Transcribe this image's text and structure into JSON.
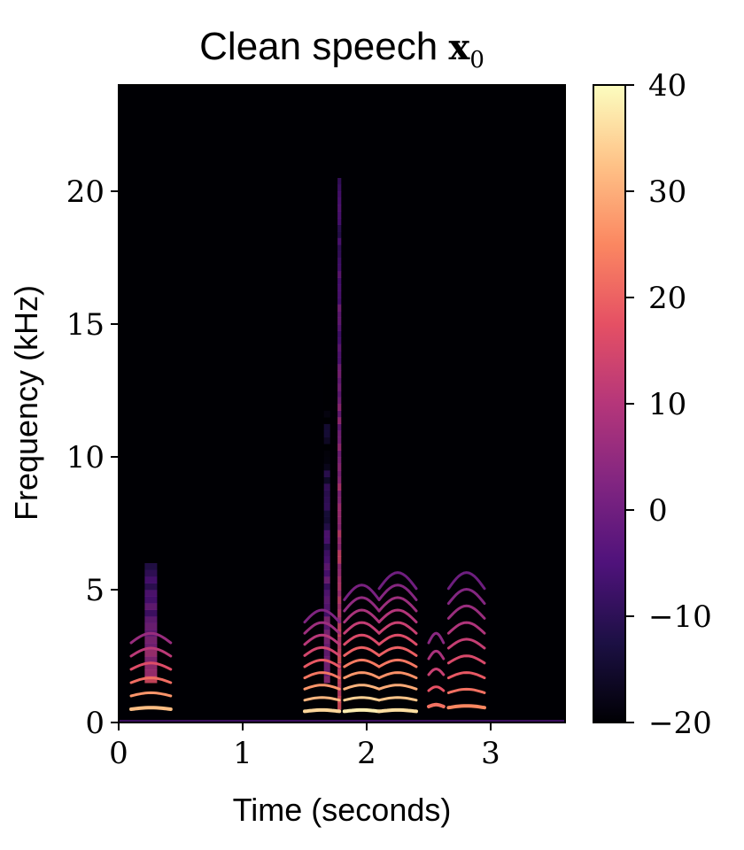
{
  "chart_data": {
    "type": "heatmap",
    "title": "Clean speech",
    "title_symbol": "x",
    "title_subscript": "0",
    "xlabel": "Time (seconds)",
    "ylabel": "Frequency (kHz)",
    "xlim": [
      0,
      3.6
    ],
    "ylim": [
      0,
      24
    ],
    "x_ticks": [
      0,
      1,
      2,
      3
    ],
    "x_tick_labels": [
      "0",
      "1",
      "2",
      "3"
    ],
    "y_ticks": [
      0,
      5,
      10,
      15,
      20
    ],
    "y_tick_labels": [
      "0",
      "5",
      "10",
      "15",
      "20"
    ],
    "colormap": "magma",
    "colorbar": {
      "min": -20,
      "max": 40,
      "ticks": [
        -20,
        -10,
        0,
        10,
        20,
        30,
        40
      ],
      "tick_labels": [
        "−20",
        "−10",
        "0",
        "10",
        "20",
        "30",
        "40"
      ]
    },
    "background_level_db": -20,
    "harmonic_segments": [
      {
        "t_start": 0.1,
        "t_end": 0.42,
        "f0_khz": 0.25,
        "n_harmonics": 6,
        "peak_db": 32
      },
      {
        "t_start": 1.5,
        "t_end": 1.78,
        "f0_khz": 0.21,
        "n_harmonics": 9,
        "peak_db": 35
      },
      {
        "t_start": 1.82,
        "t_end": 2.1,
        "f0_khz": 0.21,
        "n_harmonics": 11,
        "peak_db": 38
      },
      {
        "t_start": 2.1,
        "t_end": 2.4,
        "f0_khz": 0.21,
        "n_harmonics": 12,
        "peak_db": 36
      },
      {
        "t_start": 2.5,
        "t_end": 2.62,
        "f0_khz": 0.3,
        "n_harmonics": 5,
        "peak_db": 22
      },
      {
        "t_start": 2.66,
        "t_end": 2.95,
        "f0_khz": 0.28,
        "n_harmonics": 9,
        "peak_db": 25
      }
    ],
    "fricative_bands": [
      {
        "t": 1.78,
        "width_s": 0.03,
        "f_low_khz": 0.5,
        "f_high_khz": 20.5,
        "peak_db": 18
      },
      {
        "t": 1.68,
        "width_s": 0.05,
        "f_low_khz": 1.5,
        "f_high_khz": 13.5,
        "peak_db": 5
      },
      {
        "t": 0.26,
        "width_s": 0.1,
        "f_low_khz": 1.5,
        "f_high_khz": 6.0,
        "peak_db": 14
      }
    ]
  }
}
